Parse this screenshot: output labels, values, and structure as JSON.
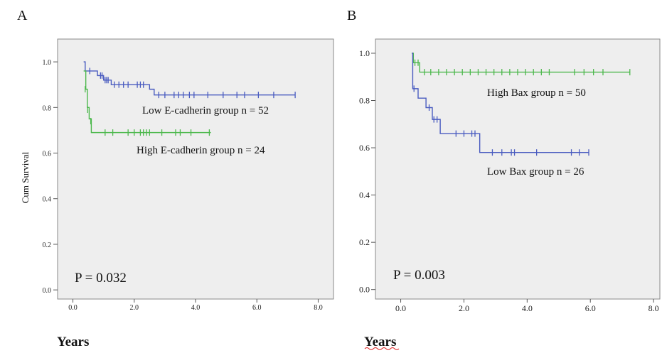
{
  "chart_data": [
    {
      "type": "line",
      "panel_label": "A",
      "xlabel": "Years",
      "ylabel": "Cum Survival",
      "xlim": [
        -0.5,
        8.5
      ],
      "ylim": [
        -0.04,
        1.1
      ],
      "x_ticks": [
        "0.0",
        "2.0",
        "4.0",
        "6.0",
        "8.0"
      ],
      "y_ticks": [
        "0.0",
        "0.2",
        "0.4",
        "0.6",
        "0.8",
        "1.0"
      ],
      "p_value": "P = 0.032",
      "series": [
        {
          "name": "Low E-cadherin group  n = 52",
          "color": "#4a5cc0",
          "steps": [
            [
              0.35,
              1.0
            ],
            [
              0.4,
              0.96
            ],
            [
              0.8,
              0.94
            ],
            [
              1.0,
              0.92
            ],
            [
              1.25,
              0.9
            ],
            [
              2.5,
              0.88
            ],
            [
              2.65,
              0.855
            ],
            [
              7.25,
              0.855
            ]
          ],
          "censored": [
            [
              0.55,
              0.96
            ],
            [
              0.9,
              0.94
            ],
            [
              0.95,
              0.94
            ],
            [
              1.05,
              0.92
            ],
            [
              1.1,
              0.92
            ],
            [
              1.15,
              0.92
            ],
            [
              1.35,
              0.9
            ],
            [
              1.5,
              0.9
            ],
            [
              1.65,
              0.9
            ],
            [
              1.8,
              0.9
            ],
            [
              2.1,
              0.9
            ],
            [
              2.2,
              0.9
            ],
            [
              2.3,
              0.9
            ],
            [
              2.8,
              0.855
            ],
            [
              3.0,
              0.855
            ],
            [
              3.3,
              0.855
            ],
            [
              3.45,
              0.855
            ],
            [
              3.6,
              0.855
            ],
            [
              3.8,
              0.855
            ],
            [
              3.95,
              0.855
            ],
            [
              4.4,
              0.855
            ],
            [
              4.9,
              0.855
            ],
            [
              5.35,
              0.855
            ],
            [
              5.6,
              0.855
            ],
            [
              6.05,
              0.855
            ],
            [
              6.55,
              0.855
            ],
            [
              7.25,
              0.855
            ]
          ]
        },
        {
          "name": "High E-cadherin group  n = 24",
          "color": "#4cb84c",
          "steps": [
            [
              0.35,
              0.96
            ],
            [
              0.42,
              0.88
            ],
            [
              0.47,
              0.8
            ],
            [
              0.53,
              0.75
            ],
            [
              0.6,
              0.69
            ],
            [
              4.5,
              0.69
            ]
          ],
          "censored": [
            [
              0.4,
              0.88
            ],
            [
              0.48,
              0.79
            ],
            [
              0.58,
              0.74
            ],
            [
              1.05,
              0.69
            ],
            [
              1.3,
              0.69
            ],
            [
              1.8,
              0.69
            ],
            [
              2.0,
              0.69
            ],
            [
              2.2,
              0.69
            ],
            [
              2.3,
              0.69
            ],
            [
              2.4,
              0.69
            ],
            [
              2.5,
              0.69
            ],
            [
              2.9,
              0.69
            ],
            [
              3.35,
              0.69
            ],
            [
              3.5,
              0.69
            ],
            [
              3.85,
              0.69
            ],
            [
              4.45,
              0.69
            ]
          ]
        }
      ]
    },
    {
      "type": "line",
      "panel_label": "B",
      "xlabel": "Years",
      "ylabel": "",
      "xlim": [
        -0.8,
        8.2
      ],
      "ylim": [
        -0.04,
        1.06
      ],
      "x_ticks": [
        "0.0",
        "2.0",
        "4.0",
        "6.0",
        "8.0"
      ],
      "y_ticks": [
        "0.0",
        "0.2",
        "0.4",
        "0.6",
        "0.8",
        "1.0"
      ],
      "p_value": "P = 0.003",
      "series": [
        {
          "name": "High Bax group  n = 50",
          "color": "#4cb84c",
          "steps": [
            [
              0.35,
              1.0
            ],
            [
              0.4,
              0.96
            ],
            [
              0.6,
              0.92
            ],
            [
              7.25,
              0.92
            ]
          ],
          "censored": [
            [
              0.45,
              0.96
            ],
            [
              0.55,
              0.96
            ],
            [
              0.75,
              0.92
            ],
            [
              0.95,
              0.92
            ],
            [
              1.2,
              0.92
            ],
            [
              1.45,
              0.92
            ],
            [
              1.7,
              0.92
            ],
            [
              1.95,
              0.92
            ],
            [
              2.2,
              0.92
            ],
            [
              2.45,
              0.92
            ],
            [
              2.7,
              0.92
            ],
            [
              2.95,
              0.92
            ],
            [
              3.2,
              0.92
            ],
            [
              3.45,
              0.92
            ],
            [
              3.7,
              0.92
            ],
            [
              3.95,
              0.92
            ],
            [
              4.2,
              0.92
            ],
            [
              4.45,
              0.92
            ],
            [
              4.7,
              0.92
            ],
            [
              5.5,
              0.92
            ],
            [
              5.8,
              0.92
            ],
            [
              6.1,
              0.92
            ],
            [
              6.4,
              0.92
            ],
            [
              7.25,
              0.92
            ]
          ]
        },
        {
          "name": "Low Bax group  n = 26",
          "color": "#4a5cc0",
          "steps": [
            [
              0.35,
              1.0
            ],
            [
              0.38,
              0.85
            ],
            [
              0.55,
              0.81
            ],
            [
              0.8,
              0.77
            ],
            [
              1.0,
              0.72
            ],
            [
              1.25,
              0.66
            ],
            [
              2.5,
              0.58
            ],
            [
              5.95,
              0.58
            ]
          ],
          "censored": [
            [
              0.42,
              0.85
            ],
            [
              0.9,
              0.77
            ],
            [
              1.05,
              0.72
            ],
            [
              1.15,
              0.72
            ],
            [
              1.75,
              0.66
            ],
            [
              2.0,
              0.66
            ],
            [
              2.25,
              0.66
            ],
            [
              2.35,
              0.66
            ],
            [
              2.9,
              0.58
            ],
            [
              3.2,
              0.58
            ],
            [
              3.5,
              0.58
            ],
            [
              3.6,
              0.58
            ],
            [
              4.3,
              0.58
            ],
            [
              5.4,
              0.58
            ],
            [
              5.65,
              0.58
            ],
            [
              5.95,
              0.58
            ]
          ]
        }
      ]
    }
  ]
}
